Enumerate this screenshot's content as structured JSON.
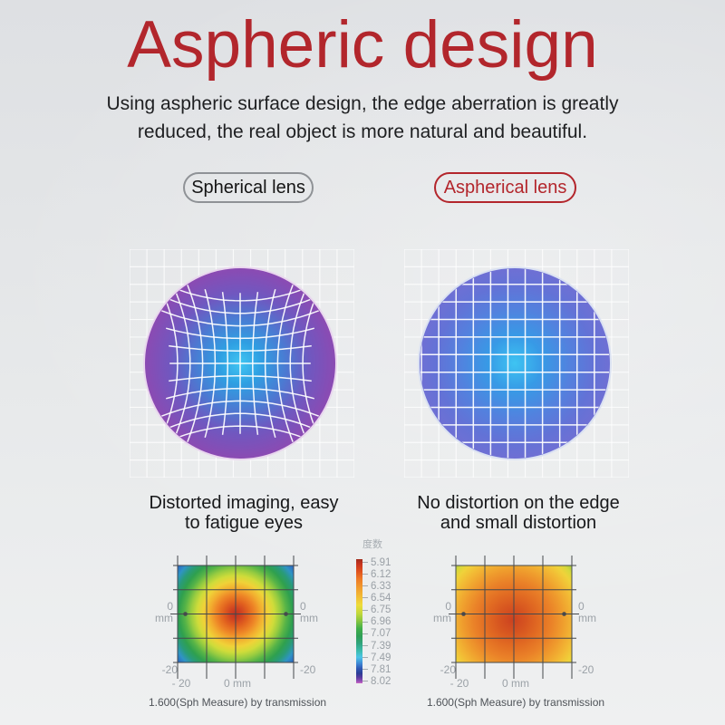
{
  "page": {
    "title": "Aspheric design",
    "subtitle_line1": "Using aspheric surface design, the edge aberration is greatly",
    "subtitle_line2": "reduced, the real object is more natural and beautiful."
  },
  "pills": {
    "left": "Spherical lens",
    "right": "Aspherical lens"
  },
  "lens_captions": {
    "left1": "Distorted imaging, easy",
    "left2": "to fatigue eyes",
    "right1": "No distortion on the edge",
    "right2": "and small distortion"
  },
  "heatmap": {
    "legend_title": "度数",
    "legend_values": [
      "5.91",
      "6.12",
      "6.33",
      "6.54",
      "6.75",
      "6.96",
      "7.07",
      "7.39",
      "7.49",
      "7.81",
      "8.02"
    ],
    "axis": {
      "zero": "0",
      "mm_unit": "mm",
      "neg20": "-20",
      "x_neg20": "- 20",
      "x_zero": "0 mm"
    },
    "caption": "1.600(Sph Measure) by transmission"
  },
  "colors": {
    "title_red": "#b2262c",
    "pill_red": "#b3262c",
    "pill_gray_border": "#8f9296",
    "lens_left_edge": "#8c4ab2",
    "lens_left_center": "#40c6f2",
    "lens_right_edge": "#6f70d4",
    "lens_right_center": "#3ec4f2",
    "background": "#e4e6e8"
  },
  "chart_data": [
    {
      "type": "heatmap",
      "title": "1.600(Sph Measure) by transmission",
      "subtitle": "Spherical lens power map (distorted imaging)",
      "legend_title": "度数",
      "legend_values": [
        5.91,
        6.12,
        6.33,
        6.54,
        6.75,
        6.96,
        7.07,
        7.39,
        7.49,
        7.81,
        8.02
      ],
      "x_ticks": [
        "- 20",
        "0 mm"
      ],
      "y_ticks_left": [
        "0 mm",
        "-20"
      ],
      "y_ticks_right": [
        "0 mm",
        "-20"
      ],
      "axis_range_mm": [
        -20,
        20
      ],
      "grid": true,
      "pattern": "radial gradient from red center (~5.91) through orange, yellow, green to blue corners (~7.5+)",
      "legend_position": "center between the two heatmaps"
    },
    {
      "type": "heatmap",
      "title": "1.600(Sph Measure) by transmission",
      "subtitle": "Aspherical lens power map (uniform power)",
      "legend_title": "度数",
      "legend_values": [
        5.91,
        6.12,
        6.33,
        6.54,
        6.75,
        6.96,
        7.07,
        7.39,
        7.49,
        7.81,
        8.02
      ],
      "x_ticks": [
        "- 20",
        "0 mm"
      ],
      "y_ticks_left": [
        "0 mm",
        "-20"
      ],
      "y_ticks_right": [
        "0 mm",
        "-20"
      ],
      "axis_range_mm": [
        -20,
        20
      ],
      "grid": true,
      "pattern": "radial gradient from red-orange center through orange to yellow edges with slight green corners",
      "legend_position": "center between the two heatmaps"
    }
  ]
}
